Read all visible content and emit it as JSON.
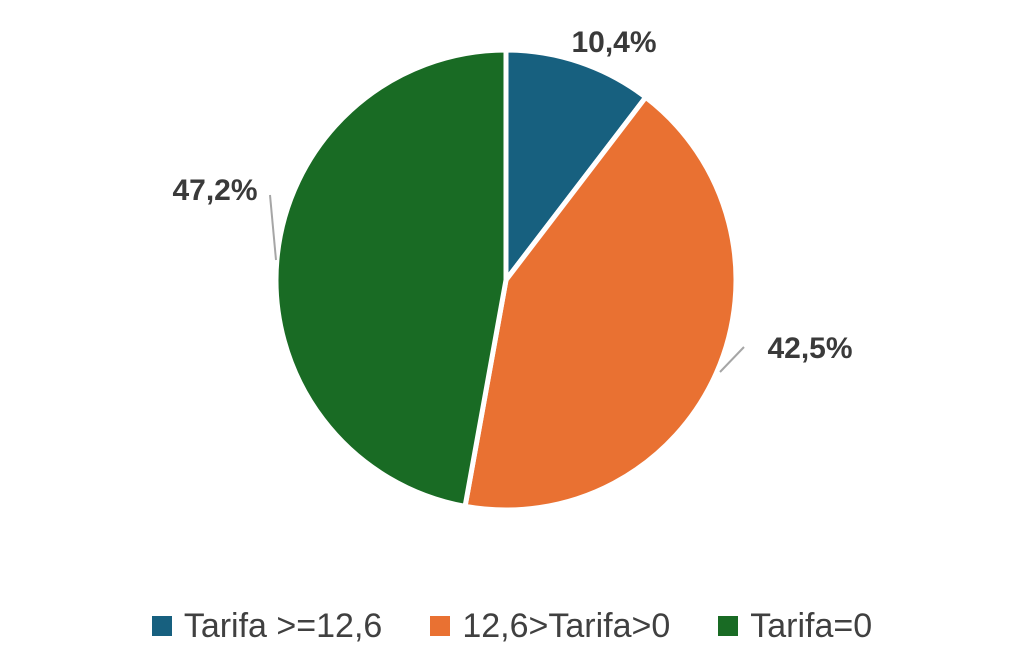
{
  "chart_data": {
    "type": "pie",
    "categories": [
      "Tarifa >=12,6",
      "12,6>Tarifa>0",
      "Tarifa=0"
    ],
    "values": [
      10.4,
      42.5,
      47.2
    ],
    "labels": [
      "10,4%",
      "42,5%",
      "47,2%"
    ],
    "colors": [
      "#17607f",
      "#e97132",
      "#196b24"
    ],
    "legend_position": "bottom",
    "start_angle": "12 o'clock, clockwise"
  }
}
